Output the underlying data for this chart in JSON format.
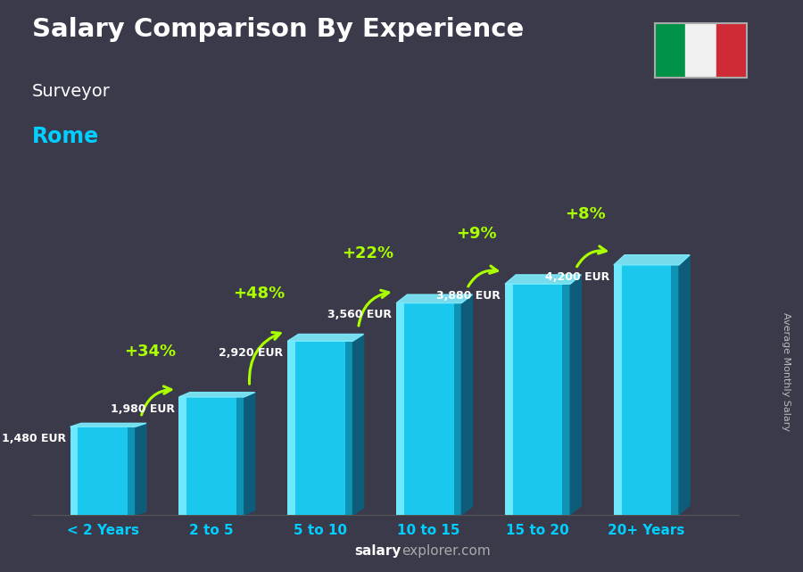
{
  "title": "Salary Comparison By Experience",
  "subtitle1": "Surveyor",
  "subtitle2": "Rome",
  "ylabel": "Average Monthly Salary",
  "categories": [
    "< 2 Years",
    "2 to 5",
    "5 to 10",
    "10 to 15",
    "15 to 20",
    "20+ Years"
  ],
  "values": [
    1480,
    1980,
    2920,
    3560,
    3880,
    4200
  ],
  "value_labels": [
    "1,480 EUR",
    "1,980 EUR",
    "2,920 EUR",
    "3,560 EUR",
    "3,880 EUR",
    "4,200 EUR"
  ],
  "pct_labels": [
    "+34%",
    "+48%",
    "+22%",
    "+9%",
    "+8%"
  ],
  "bar_face_color": "#1ac8ed",
  "bar_highlight_color": "#7eeeff",
  "bar_shadow_color": "#0e8aaa",
  "bar_side_color": "#0a6080",
  "bg_color": "#3a3a4a",
  "title_color": "#ffffff",
  "subtitle1_color": "#ffffff",
  "subtitle2_color": "#00cfff",
  "xticklabel_color": "#00cfff",
  "pct_color": "#aaff00",
  "value_color": "#ffffff",
  "watermark_salary_color": "#ffffff",
  "watermark_rest_color": "#aaaaaa",
  "flag_green": "#009246",
  "flag_white": "#f0f0f0",
  "flag_red": "#ce2b37",
  "ylim_max": 5000,
  "bar_width": 0.6
}
